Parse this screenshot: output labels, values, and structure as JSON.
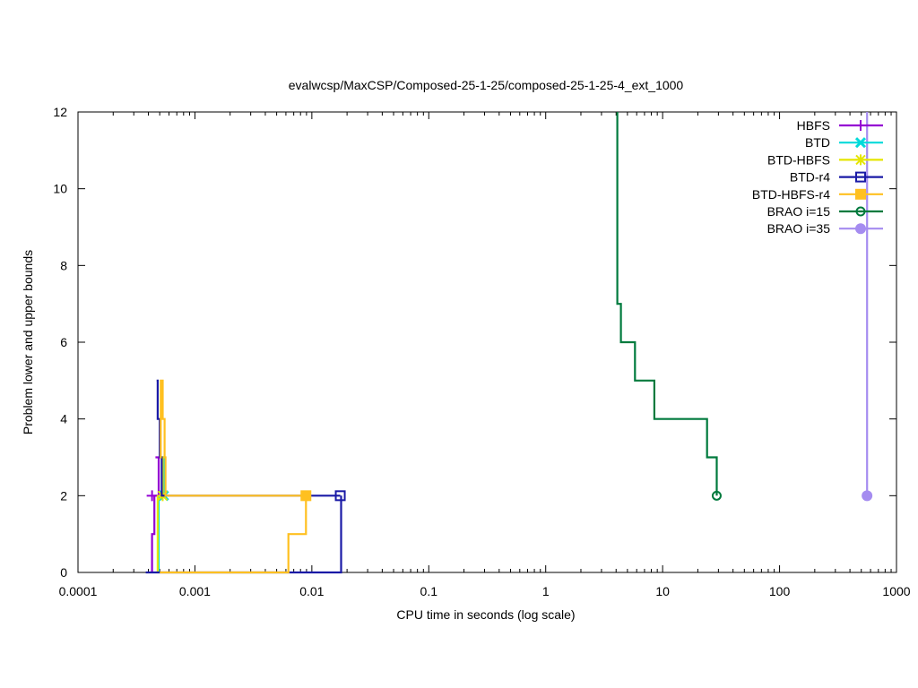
{
  "chart_data": {
    "type": "line",
    "title": "evalwcsp/MaxCSP/Composed-25-1-25/composed-25-1-25-4_ext_1000",
    "xlabel": "CPU time in seconds (log scale)",
    "ylabel": "Problem lower and upper bounds",
    "xscale": "log",
    "xlim": [
      0.0001,
      1000
    ],
    "ylim": [
      0,
      12
    ],
    "xticks": [
      {
        "value": 0.0001,
        "label": "0.0001"
      },
      {
        "value": 0.001,
        "label": "0.001"
      },
      {
        "value": 0.01,
        "label": "0.01"
      },
      {
        "value": 0.1,
        "label": "0.1"
      },
      {
        "value": 1,
        "label": "1"
      },
      {
        "value": 10,
        "label": "10"
      },
      {
        "value": 100,
        "label": "100"
      },
      {
        "value": 1000,
        "label": "1000"
      }
    ],
    "yticks": [
      {
        "value": 0,
        "label": "0"
      },
      {
        "value": 2,
        "label": "2"
      },
      {
        "value": 4,
        "label": "4"
      },
      {
        "value": 6,
        "label": "6"
      },
      {
        "value": 8,
        "label": "8"
      },
      {
        "value": 10,
        "label": "10"
      },
      {
        "value": 12,
        "label": "12"
      }
    ],
    "legend_position": "top-right",
    "grid": false,
    "series": [
      {
        "name": "HBFS",
        "color": "#9400d3",
        "marker": "plus",
        "lower": [
          [
            0.00043,
            0
          ],
          [
            0.00043,
            1
          ],
          [
            0.00045,
            1
          ],
          [
            0.00045,
            2
          ],
          [
            0.00046,
            2
          ]
        ],
        "upper": [
          [
            0.00046,
            3
          ],
          [
            0.00049,
            3
          ],
          [
            0.00049,
            2
          ],
          [
            0.00046,
            2
          ]
        ],
        "final": [
          0.00043,
          2
        ]
      },
      {
        "name": "BTD",
        "color": "#00dada",
        "marker": "cross",
        "lower": [
          [
            0.00049,
            0
          ],
          [
            0.00049,
            2
          ]
        ],
        "upper": [
          [
            0.00052,
            3
          ],
          [
            0.00054,
            3
          ],
          [
            0.00054,
            2
          ]
        ],
        "final": [
          0.00054,
          2
        ]
      },
      {
        "name": "BTD-HBFS",
        "color": "#e5e500",
        "marker": "star",
        "lower": [
          [
            0.00048,
            0
          ],
          [
            0.00048,
            2
          ]
        ],
        "upper": [
          [
            0.00051,
            3
          ],
          [
            0.00053,
            3
          ],
          [
            0.00053,
            2
          ]
        ],
        "final": [
          0.00053,
          2
        ]
      },
      {
        "name": "BTD-r4",
        "color": "#1a1aa6",
        "marker": "open-square",
        "lower": [
          [
            0.00038,
            0
          ],
          [
            0.0178,
            0
          ],
          [
            0.0178,
            2
          ]
        ],
        "upper": [
          [
            0.00047,
            5
          ],
          [
            0.00048,
            5
          ],
          [
            0.00048,
            4
          ],
          [
            0.0005,
            4
          ],
          [
            0.0005,
            3
          ],
          [
            0.00052,
            3
          ],
          [
            0.00052,
            2
          ],
          [
            0.0175,
            2
          ]
        ],
        "final": [
          0.0175,
          2
        ]
      },
      {
        "name": "BTD-HBFS-r4",
        "color": "#ffc020",
        "marker": "filled-square",
        "lower": [
          [
            0.0005,
            0
          ],
          [
            0.0063,
            0
          ],
          [
            0.0063,
            1
          ],
          [
            0.0089,
            1
          ],
          [
            0.0089,
            2
          ]
        ],
        "upper": [
          [
            0.0005,
            3
          ],
          [
            0.00051,
            3
          ],
          [
            0.00051,
            5
          ],
          [
            0.00053,
            5
          ],
          [
            0.00053,
            4
          ],
          [
            0.00055,
            4
          ],
          [
            0.00055,
            3
          ],
          [
            0.00056,
            3
          ],
          [
            0.00056,
            2
          ],
          [
            0.0089,
            2
          ]
        ],
        "final": [
          0.0089,
          2
        ]
      },
      {
        "name": "BRAO i=15",
        "color": "#007a3d",
        "marker": "open-circle",
        "lower": [],
        "upper": [
          [
            4.1,
            12
          ],
          [
            4.1,
            7
          ],
          [
            4.4,
            7
          ],
          [
            4.4,
            6
          ],
          [
            5.8,
            6
          ],
          [
            5.8,
            5
          ],
          [
            8.5,
            5
          ],
          [
            8.5,
            4
          ],
          [
            24,
            4
          ],
          [
            24,
            3
          ],
          [
            29,
            3
          ],
          [
            29,
            2
          ]
        ],
        "final": [
          29,
          2
        ]
      },
      {
        "name": "BRAO i=35",
        "color": "#a58cf0",
        "marker": "filled-circle",
        "lower": [],
        "upper": [
          [
            560,
            12
          ],
          [
            560,
            2
          ]
        ],
        "final": [
          560,
          2
        ]
      }
    ]
  }
}
